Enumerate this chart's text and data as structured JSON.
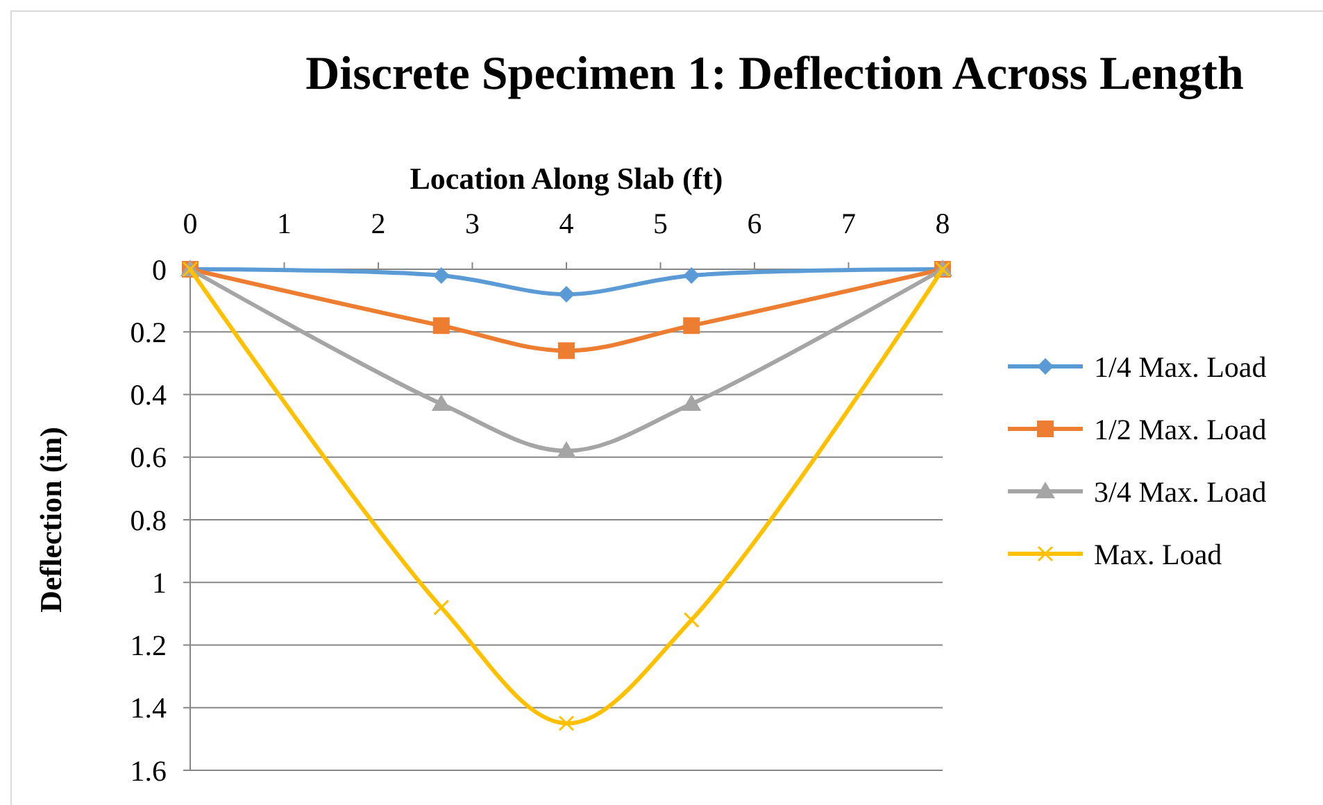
{
  "chart_data": {
    "type": "line",
    "title": "Discrete Specimen 1: Deflection Across Length",
    "xlabel": "Location Along Slab (ft)",
    "ylabel": "Deflection (in)",
    "x": [
      0,
      2.67,
      4,
      5.33,
      8
    ],
    "series": [
      {
        "name": "1/4 Max. Load",
        "color": "#5b9bd5",
        "marker": "diamond",
        "values": [
          0,
          0.02,
          0.08,
          0.02,
          0
        ]
      },
      {
        "name": "1/2 Max. Load",
        "color": "#ed7d31",
        "marker": "square",
        "values": [
          0,
          0.18,
          0.26,
          0.18,
          0
        ]
      },
      {
        "name": "3/4 Max. Load",
        "color": "#a5a5a5",
        "marker": "triangle",
        "values": [
          0,
          0.43,
          0.58,
          0.43,
          0
        ]
      },
      {
        "name": "Max. Load",
        "color": "#ffc000",
        "marker": "cross",
        "values": [
          0,
          1.08,
          1.45,
          1.12,
          0
        ]
      }
    ],
    "xlim": [
      0,
      8
    ],
    "xticks": [
      0,
      1,
      2,
      3,
      4,
      5,
      6,
      7,
      8
    ],
    "ylim": [
      1.6,
      0
    ],
    "yticks": [
      0,
      0.2,
      0.4,
      0.6,
      0.8,
      1,
      1.2,
      1.4,
      1.6
    ],
    "grid": "y",
    "legend": "right"
  }
}
